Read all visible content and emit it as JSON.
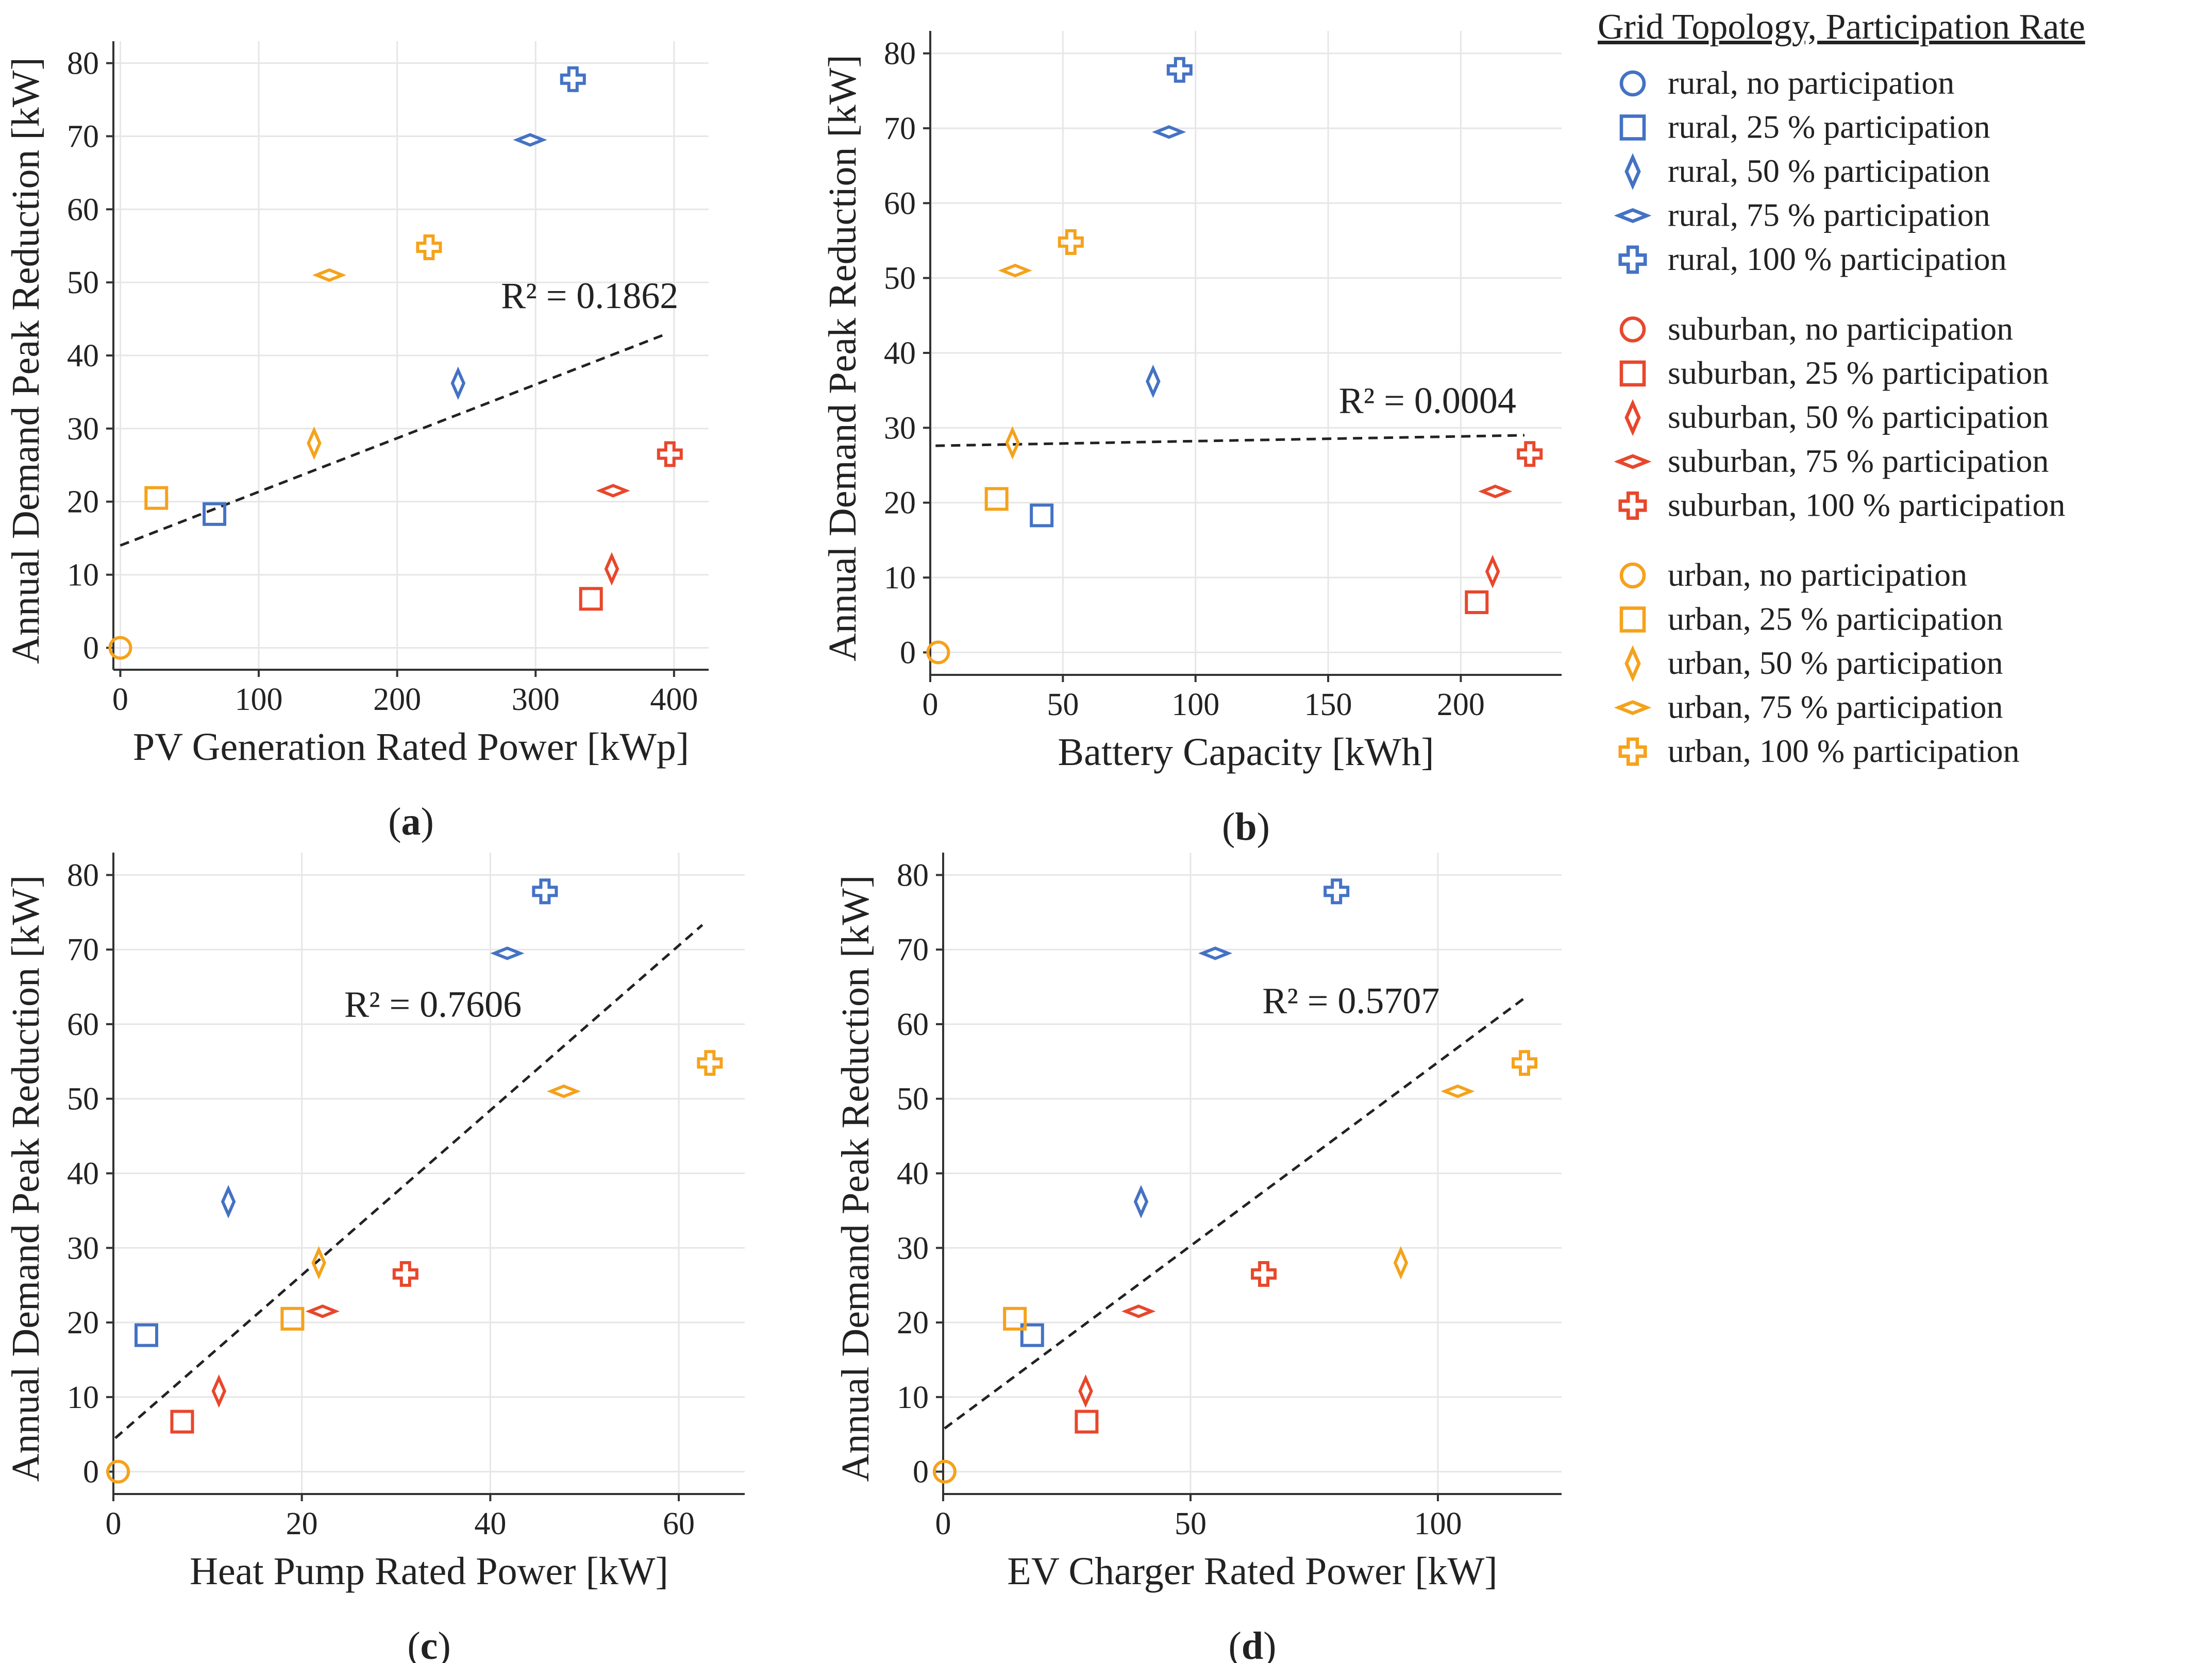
{
  "chart_data": {
    "type": "scatter",
    "legend": {
      "title": "Grid  Topology, Participation  Rate",
      "position": "right",
      "groups": [
        {
          "topology": "rural",
          "color": "#4472c4",
          "entries": [
            {
              "label": "rural, no participation",
              "marker": "circle"
            },
            {
              "label": "rural, 25 % participation",
              "marker": "square"
            },
            {
              "label": "rural, 50 % participation",
              "marker": "diamond-tall"
            },
            {
              "label": "rural, 75 % participation",
              "marker": "diamond-wide"
            },
            {
              "label": "rural, 100 % participation",
              "marker": "cross"
            }
          ]
        },
        {
          "topology": "suburban",
          "color": "#e8472c",
          "entries": [
            {
              "label": "suburban, no participation",
              "marker": "circle"
            },
            {
              "label": "suburban, 25 % participation",
              "marker": "square"
            },
            {
              "label": "suburban, 50 % participation",
              "marker": "diamond-tall"
            },
            {
              "label": "suburban, 75 % participation",
              "marker": "diamond-wide"
            },
            {
              "label": "suburban, 100 % participation",
              "marker": "cross"
            }
          ]
        },
        {
          "topology": "urban",
          "color": "#f5a21b",
          "entries": [
            {
              "label": "urban, no participation",
              "marker": "circle"
            },
            {
              "label": "urban, 25 % participation",
              "marker": "square"
            },
            {
              "label": "urban, 50 % participation",
              "marker": "diamond-tall"
            },
            {
              "label": "urban, 75 % participation",
              "marker": "diamond-wide"
            },
            {
              "label": "urban, 100 % participation",
              "marker": "cross"
            }
          ]
        }
      ]
    },
    "panels": [
      {
        "id": "a",
        "letter": "a",
        "xlabel": "PV Generation Rated Power [kWp]",
        "ylabel": "Annual Demand Peak Reduction [kW]",
        "xlim": [
          -5,
          425
        ],
        "ylim": [
          -3,
          83
        ],
        "xticks": [
          0,
          100,
          200,
          300,
          400
        ],
        "yticks": [
          0,
          10,
          20,
          30,
          40,
          50,
          60,
          70,
          80
        ],
        "r2": "R² = 0.1862",
        "trend": {
          "x": [
            0,
            395
          ],
          "y": [
            14,
            43
          ]
        },
        "r2_anchor": {
          "x": 275,
          "y": 46.5
        },
        "points": [
          {
            "topology": "rural",
            "marker": "square",
            "x": 68,
            "y": 18.3
          },
          {
            "topology": "rural",
            "marker": "diamond-tall",
            "x": 244,
            "y": 36.2
          },
          {
            "topology": "rural",
            "marker": "diamond-wide",
            "x": 296,
            "y": 69.5
          },
          {
            "topology": "rural",
            "marker": "cross",
            "x": 327,
            "y": 77.8
          },
          {
            "topology": "suburban",
            "marker": "square",
            "x": 340,
            "y": 6.7
          },
          {
            "topology": "suburban",
            "marker": "diamond-tall",
            "x": 355,
            "y": 10.8
          },
          {
            "topology": "suburban",
            "marker": "diamond-wide",
            "x": 356,
            "y": 21.5
          },
          {
            "topology": "suburban",
            "marker": "cross",
            "x": 397,
            "y": 26.5
          },
          {
            "topology": "urban",
            "marker": "circle",
            "x": 0,
            "y": 0
          },
          {
            "topology": "urban",
            "marker": "square",
            "x": 26,
            "y": 20.5
          },
          {
            "topology": "urban",
            "marker": "diamond-tall",
            "x": 140,
            "y": 28.0
          },
          {
            "topology": "urban",
            "marker": "diamond-wide",
            "x": 151,
            "y": 51.0
          },
          {
            "topology": "urban",
            "marker": "cross",
            "x": 223,
            "y": 54.8
          }
        ]
      },
      {
        "id": "b",
        "letter": "b",
        "xlabel": "Battery Capacity [kWh]",
        "ylabel": "Annual Demand Peak Reduction [kW]",
        "xlim": [
          0,
          238
        ],
        "ylim": [
          -3,
          83
        ],
        "xticks": [
          0,
          50,
          100,
          150,
          200
        ],
        "yticks": [
          0,
          10,
          20,
          30,
          40,
          50,
          60,
          70,
          80
        ],
        "r2": "R² = 0.0004",
        "trend": {
          "x": [
            2,
            224
          ],
          "y": [
            27.6,
            29.0
          ]
        },
        "r2_anchor": {
          "x": 154,
          "y": 32.0
        },
        "points": [
          {
            "topology": "rural",
            "marker": "square",
            "x": 42,
            "y": 18.3
          },
          {
            "topology": "rural",
            "marker": "diamond-tall",
            "x": 84,
            "y": 36.2
          },
          {
            "topology": "rural",
            "marker": "diamond-wide",
            "x": 90,
            "y": 69.5
          },
          {
            "topology": "rural",
            "marker": "cross",
            "x": 94,
            "y": 77.8
          },
          {
            "topology": "suburban",
            "marker": "square",
            "x": 206,
            "y": 6.7
          },
          {
            "topology": "suburban",
            "marker": "diamond-tall",
            "x": 212,
            "y": 10.8
          },
          {
            "topology": "suburban",
            "marker": "diamond-wide",
            "x": 213,
            "y": 21.5
          },
          {
            "topology": "suburban",
            "marker": "cross",
            "x": 226,
            "y": 26.5
          },
          {
            "topology": "urban",
            "marker": "circle",
            "x": 3,
            "y": 0
          },
          {
            "topology": "urban",
            "marker": "square",
            "x": 25,
            "y": 20.5
          },
          {
            "topology": "urban",
            "marker": "diamond-tall",
            "x": 31,
            "y": 28.0
          },
          {
            "topology": "urban",
            "marker": "diamond-wide",
            "x": 32,
            "y": 51.0
          },
          {
            "topology": "urban",
            "marker": "cross",
            "x": 53,
            "y": 54.8
          }
        ]
      },
      {
        "id": "c",
        "letter": "c",
        "xlabel": "Heat Pump Rated Power [kW]",
        "ylabel": "Annual Demand Peak Reduction [kW]",
        "xlim": [
          0,
          67
        ],
        "ylim": [
          -3,
          83
        ],
        "xticks": [
          0,
          20,
          40,
          60
        ],
        "yticks": [
          0,
          10,
          20,
          30,
          40,
          50,
          60,
          70,
          80
        ],
        "r2": "R² = 0.7606",
        "trend": {
          "x": [
            0.2,
            62.5
          ],
          "y": [
            4.5,
            73.3
          ]
        },
        "r2_anchor": {
          "x": 24.5,
          "y": 61.0
        },
        "points": [
          {
            "topology": "rural",
            "marker": "square",
            "x": 3.5,
            "y": 18.3
          },
          {
            "topology": "rural",
            "marker": "diamond-tall",
            "x": 12.2,
            "y": 36.2
          },
          {
            "topology": "rural",
            "marker": "diamond-wide",
            "x": 41.8,
            "y": 69.5
          },
          {
            "topology": "rural",
            "marker": "cross",
            "x": 45.8,
            "y": 77.8
          },
          {
            "topology": "suburban",
            "marker": "square",
            "x": 7.3,
            "y": 6.7
          },
          {
            "topology": "suburban",
            "marker": "diamond-tall",
            "x": 11.2,
            "y": 10.8
          },
          {
            "topology": "suburban",
            "marker": "diamond-wide",
            "x": 22.2,
            "y": 21.5
          },
          {
            "topology": "suburban",
            "marker": "cross",
            "x": 31.0,
            "y": 26.5
          },
          {
            "topology": "urban",
            "marker": "circle",
            "x": 0.5,
            "y": 0
          },
          {
            "topology": "urban",
            "marker": "square",
            "x": 19.0,
            "y": 20.5
          },
          {
            "topology": "urban",
            "marker": "diamond-tall",
            "x": 21.8,
            "y": 28.0
          },
          {
            "topology": "urban",
            "marker": "diamond-wide",
            "x": 47.8,
            "y": 51.0
          },
          {
            "topology": "urban",
            "marker": "cross",
            "x": 63.3,
            "y": 54.8
          }
        ]
      },
      {
        "id": "d",
        "letter": "d",
        "xlabel": "EV Charger Rated Power [kW]",
        "ylabel": "Annual Demand Peak Reduction [kW]",
        "xlim": [
          0,
          125
        ],
        "ylim": [
          -3,
          83
        ],
        "xticks": [
          0,
          50,
          100
        ],
        "yticks": [
          0,
          10,
          20,
          30,
          40,
          50,
          60,
          70,
          80
        ],
        "r2": "R² = 0.5707",
        "trend": {
          "x": [
            0.3,
            117.5
          ],
          "y": [
            5.8,
            63.5
          ]
        },
        "r2_anchor": {
          "x": 64.5,
          "y": 61.5
        },
        "points": [
          {
            "topology": "rural",
            "marker": "square",
            "x": 18.0,
            "y": 18.3
          },
          {
            "topology": "rural",
            "marker": "diamond-tall",
            "x": 40.0,
            "y": 36.2
          },
          {
            "topology": "rural",
            "marker": "diamond-wide",
            "x": 55.0,
            "y": 69.5
          },
          {
            "topology": "rural",
            "marker": "cross",
            "x": 79.5,
            "y": 77.8
          },
          {
            "topology": "suburban",
            "marker": "square",
            "x": 29.0,
            "y": 6.7
          },
          {
            "topology": "suburban",
            "marker": "diamond-tall",
            "x": 28.8,
            "y": 10.8
          },
          {
            "topology": "suburban",
            "marker": "diamond-wide",
            "x": 39.5,
            "y": 21.5
          },
          {
            "topology": "suburban",
            "marker": "cross",
            "x": 64.8,
            "y": 26.5
          },
          {
            "topology": "urban",
            "marker": "circle",
            "x": 0.3,
            "y": 0
          },
          {
            "topology": "urban",
            "marker": "square",
            "x": 14.5,
            "y": 20.5
          },
          {
            "topology": "urban",
            "marker": "diamond-tall",
            "x": 92.5,
            "y": 28.0
          },
          {
            "topology": "urban",
            "marker": "diamond-wide",
            "x": 104.0,
            "y": 51.0
          },
          {
            "topology": "urban",
            "marker": "cross",
            "x": 117.5,
            "y": 54.8
          }
        ]
      }
    ]
  }
}
